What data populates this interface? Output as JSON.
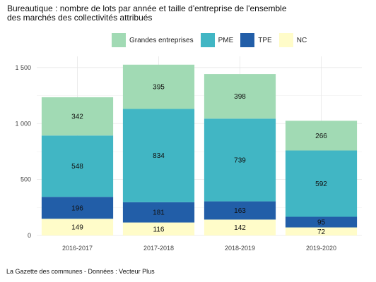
{
  "chart_data": {
    "type": "bar",
    "stacked": true,
    "title": "Bureautique : nombre de lots par année et taille d'entreprise de l'ensemble\ndes marchés des collectivités attribués",
    "xlabel": "",
    "ylabel": "",
    "categories": [
      "2016-2017",
      "2017-2018",
      "2018-2019",
      "2019-2020"
    ],
    "series": [
      {
        "name": "NC",
        "color": "#fffcc9",
        "values": [
          149,
          116,
          142,
          72
        ]
      },
      {
        "name": "TPE",
        "color": "#225ea8",
        "values": [
          196,
          181,
          163,
          95
        ]
      },
      {
        "name": "PME",
        "color": "#41b6c4",
        "values": [
          548,
          834,
          739,
          592
        ]
      },
      {
        "name": "Grandes entreprises",
        "color": "#a1dab4",
        "values": [
          342,
          395,
          398,
          266
        ]
      }
    ],
    "legend_order": [
      "Grandes entreprises",
      "PME",
      "TPE",
      "NC"
    ],
    "ylim": [
      0,
      1600
    ],
    "yticks": [
      0,
      500,
      1000,
      1500
    ],
    "ytick_labels": [
      "0",
      "500",
      "1 000",
      "1 500"
    ],
    "grid": true,
    "legend_position": "top"
  },
  "caption": "La Gazette des communes - Données : Vecteur Plus"
}
